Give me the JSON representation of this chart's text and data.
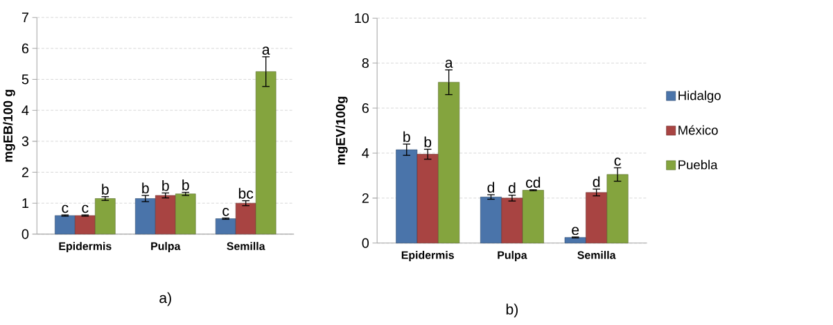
{
  "chart_data": [
    {
      "type": "bar",
      "ylabel": "mgEB/100 g",
      "categories": [
        "Epidermis",
        "Pulpa",
        "Semilla"
      ],
      "ylim": [
        0,
        7
      ],
      "yticks": [
        0,
        1,
        2,
        3,
        4,
        5,
        6,
        7
      ],
      "grid": "y",
      "annotations": [
        "a)"
      ],
      "series": [
        {
          "color": "#4a74aa",
          "values": [
            0.6,
            1.15,
            0.5
          ],
          "errors": [
            0.02,
            0.1,
            0.02
          ],
          "value_labels": [
            "c",
            "b",
            "c"
          ]
        },
        {
          "color": "#a84442",
          "values": [
            0.6,
            1.25,
            1.0
          ],
          "errors": [
            0.02,
            0.08,
            0.08
          ],
          "value_labels": [
            "c",
            "b",
            "bc"
          ]
        },
        {
          "color": "#84a43e",
          "values": [
            1.15,
            1.3,
            5.25
          ],
          "errors": [
            0.06,
            0.05,
            0.48
          ],
          "value_labels": [
            "b",
            "b",
            "a"
          ]
        }
      ]
    },
    {
      "type": "bar",
      "ylabel": "mgEV/100g",
      "categories": [
        "Epidermis",
        "Pulpa",
        "Semilla"
      ],
      "ylim": [
        0,
        10
      ],
      "yticks": [
        0,
        2,
        4,
        6,
        8,
        10
      ],
      "grid": "y",
      "legend": "right",
      "annotations": [
        "b)"
      ],
      "series": [
        {
          "name": "Hidalgo",
          "color": "#4a74aa",
          "values": [
            4.15,
            2.05,
            0.25
          ],
          "errors": [
            0.25,
            0.1,
            0.02
          ],
          "value_labels": [
            "b",
            "d",
            "e"
          ]
        },
        {
          "name": "México",
          "color": "#a84442",
          "values": [
            3.95,
            2.0,
            2.25
          ],
          "errors": [
            0.22,
            0.13,
            0.15
          ],
          "value_labels": [
            "b",
            "d",
            "d"
          ]
        },
        {
          "name": "Puebla",
          "color": "#84a43e",
          "values": [
            7.15,
            2.35,
            3.05
          ],
          "errors": [
            0.55,
            0.02,
            0.3
          ],
          "value_labels": [
            "a",
            "cd",
            "c"
          ]
        }
      ]
    }
  ]
}
